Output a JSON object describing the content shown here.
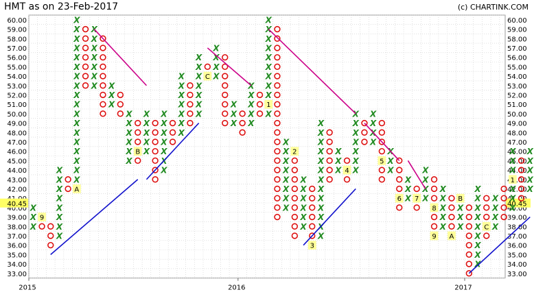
{
  "chart_title": "HMT as on 23-Feb-2017",
  "copyright": "(c) CHARTINK.COM",
  "colors": {
    "x": "#228B22",
    "o": "#DD1111",
    "grid": "#cccccc",
    "resistance": "#CC0088",
    "support": "#1111CC",
    "label_bg": "#FFFF99",
    "last_price_bg": "#FFFF66"
  },
  "chart_data": {
    "type": "point-and-figure",
    "box_size": 1,
    "ylim": [
      33,
      60
    ],
    "y_ticks": [
      60,
      59,
      58,
      57,
      56,
      55,
      54,
      53,
      52,
      51,
      50,
      49,
      48,
      47,
      46,
      45,
      44,
      43,
      42,
      41,
      40,
      39,
      38,
      37,
      36,
      35,
      34,
      33
    ],
    "y_tick_labels": [
      "60.00",
      "59.00",
      "58.00",
      "57.00",
      "56.00",
      "55.00",
      "54.00",
      "53.00",
      "52.00",
      "51.00",
      "50.00",
      "49.00",
      "48.00",
      "47.00",
      "46.00",
      "45.00",
      "44.00",
      "43.00",
      "42.00",
      "41.00",
      "40.00",
      "39.00",
      "38.00",
      "37.00",
      "36.00",
      "35.00",
      "34.00",
      "33.00"
    ],
    "x_labels": [
      {
        "col": 0,
        "text": "2015"
      },
      {
        "col": 24,
        "text": "2016"
      },
      {
        "col": 50,
        "text": "2017"
      }
    ],
    "last_price": "40.45",
    "columns": [
      {
        "t": "X",
        "lo": 38,
        "hi": 40
      },
      {
        "t": "O",
        "lo": 38,
        "hi": 39,
        "labels": [
          {
            "y": 39,
            "text": "9"
          }
        ]
      },
      {
        "t": "O",
        "lo": 36,
        "hi": 38
      },
      {
        "t": "X",
        "lo": 37,
        "hi": 44
      },
      {
        "t": "O",
        "lo": 42,
        "hi": 43
      },
      {
        "t": "X",
        "lo": 42,
        "hi": 60,
        "labels": [
          {
            "y": 42,
            "text": "A"
          }
        ]
      },
      {
        "t": "O",
        "lo": 53,
        "hi": 59
      },
      {
        "t": "X",
        "lo": 53,
        "hi": 59
      },
      {
        "t": "O",
        "lo": 50,
        "hi": 58
      },
      {
        "t": "X",
        "lo": 51,
        "hi": 53
      },
      {
        "t": "O",
        "lo": 50,
        "hi": 52
      },
      {
        "t": "X",
        "lo": 45,
        "hi": 50
      },
      {
        "t": "O",
        "lo": 45,
        "hi": 49,
        "labels": [
          {
            "y": 46,
            "text": "B"
          }
        ]
      },
      {
        "t": "X",
        "lo": 46,
        "hi": 50
      },
      {
        "t": "O",
        "lo": 43,
        "hi": 49
      },
      {
        "t": "X",
        "lo": 44,
        "hi": 50
      },
      {
        "t": "O",
        "lo": 47,
        "hi": 49
      },
      {
        "t": "X",
        "lo": 48,
        "hi": 54
      },
      {
        "t": "O",
        "lo": 49,
        "hi": 53
      },
      {
        "t": "X",
        "lo": 50,
        "hi": 56
      },
      {
        "t": "O",
        "lo": 54,
        "hi": 55,
        "labels": [
          {
            "y": 54,
            "text": "C"
          }
        ]
      },
      {
        "t": "X",
        "lo": 54,
        "hi": 57
      },
      {
        "t": "O",
        "lo": 49,
        "hi": 56
      },
      {
        "t": "X",
        "lo": 49,
        "hi": 51
      },
      {
        "t": "O",
        "lo": 48,
        "hi": 50
      },
      {
        "t": "X",
        "lo": 49,
        "hi": 53
      },
      {
        "t": "O",
        "lo": 50,
        "hi": 52
      },
      {
        "t": "X",
        "lo": 50,
        "hi": 60,
        "labels": [
          {
            "y": 51,
            "text": "1"
          }
        ]
      },
      {
        "t": "O",
        "lo": 39,
        "hi": 59
      },
      {
        "t": "X",
        "lo": 40,
        "hi": 47
      },
      {
        "t": "O",
        "lo": 37,
        "hi": 46,
        "labels": [
          {
            "y": 46,
            "text": "2"
          }
        ]
      },
      {
        "t": "X",
        "lo": 38,
        "hi": 43
      },
      {
        "t": "O",
        "lo": 36,
        "hi": 42,
        "labels": [
          {
            "y": 36,
            "text": "3"
          }
        ]
      },
      {
        "t": "X",
        "lo": 37,
        "hi": 49
      },
      {
        "t": "O",
        "lo": 43,
        "hi": 48
      },
      {
        "t": "X",
        "lo": 44,
        "hi": 46
      },
      {
        "t": "O",
        "lo": 43,
        "hi": 45,
        "labels": [
          {
            "y": 44,
            "text": "4"
          }
        ]
      },
      {
        "t": "X",
        "lo": 44,
        "hi": 50
      },
      {
        "t": "O",
        "lo": 47,
        "hi": 49
      },
      {
        "t": "X",
        "lo": 47,
        "hi": 50
      },
      {
        "t": "O",
        "lo": 43,
        "hi": 49,
        "labels": [
          {
            "y": 45,
            "text": "5"
          }
        ]
      },
      {
        "t": "X",
        "lo": 44,
        "hi": 46
      },
      {
        "t": "O",
        "lo": 40,
        "hi": 45,
        "labels": [
          {
            "y": 41,
            "text": "6"
          }
        ]
      },
      {
        "t": "X",
        "lo": 41,
        "hi": 43
      },
      {
        "t": "O",
        "lo": 40,
        "hi": 42,
        "labels": [
          {
            "y": 41,
            "text": "7"
          }
        ]
      },
      {
        "t": "X",
        "lo": 41,
        "hi": 44
      },
      {
        "t": "O",
        "lo": 37,
        "hi": 43,
        "labels": [
          {
            "y": 40,
            "text": "8"
          },
          {
            "y": 37,
            "text": "9"
          }
        ]
      },
      {
        "t": "X",
        "lo": 38,
        "hi": 42
      },
      {
        "t": "O",
        "lo": 37,
        "hi": 41,
        "labels": [
          {
            "y": 37,
            "text": "A"
          }
        ]
      },
      {
        "t": "X",
        "lo": 38,
        "hi": 41,
        "labels": [
          {
            "y": 41,
            "text": "B"
          }
        ]
      },
      {
        "t": "O",
        "lo": 33,
        "hi": 40
      },
      {
        "t": "X",
        "lo": 34,
        "hi": 42
      },
      {
        "t": "O",
        "lo": 37,
        "hi": 41,
        "labels": [
          {
            "y": 38,
            "text": "C"
          }
        ]
      },
      {
        "t": "X",
        "lo": 38,
        "hi": 41
      },
      {
        "t": "O",
        "lo": 39,
        "hi": 42
      },
      {
        "t": "X",
        "lo": 40,
        "hi": 46,
        "labels": [
          {
            "y": 43,
            "text": "1"
          }
        ]
      },
      {
        "t": "O",
        "lo": 41,
        "hi": 45
      },
      {
        "t": "X",
        "lo": 42,
        "hi": 46
      },
      {
        "t": "O",
        "lo": 39,
        "hi": 45,
        "labels": [
          {
            "y": 42,
            "text": "2"
          }
        ]
      },
      {
        "t": "X",
        "lo": 40,
        "hi": 42
      }
    ],
    "trendlines": [
      {
        "kind": "support",
        "from": {
          "col": 2,
          "y": 35
        },
        "to": {
          "col": 12,
          "y": 43
        }
      },
      {
        "kind": "resistance",
        "from": {
          "col": 7,
          "y": 59
        },
        "to": {
          "col": 13,
          "y": 53
        }
      },
      {
        "kind": "support",
        "from": {
          "col": 13,
          "y": 43
        },
        "to": {
          "col": 19,
          "y": 49
        }
      },
      {
        "kind": "resistance",
        "from": {
          "col": 20,
          "y": 57
        },
        "to": {
          "col": 25,
          "y": 53
        }
      },
      {
        "kind": "resistance",
        "from": {
          "col": 27,
          "y": 59
        },
        "to": {
          "col": 37,
          "y": 50
        }
      },
      {
        "kind": "support",
        "from": {
          "col": 31,
          "y": 36
        },
        "to": {
          "col": 37,
          "y": 42
        }
      },
      {
        "kind": "resistance",
        "from": {
          "col": 38,
          "y": 49
        },
        "to": {
          "col": 42,
          "y": 45
        }
      },
      {
        "kind": "resistance",
        "from": {
          "col": 43,
          "y": 45
        },
        "to": {
          "col": 45,
          "y": 42
        }
      },
      {
        "kind": "support",
        "from": {
          "col": 50,
          "y": 33
        },
        "to": {
          "col": 57,
          "y": 39
        }
      }
    ]
  }
}
